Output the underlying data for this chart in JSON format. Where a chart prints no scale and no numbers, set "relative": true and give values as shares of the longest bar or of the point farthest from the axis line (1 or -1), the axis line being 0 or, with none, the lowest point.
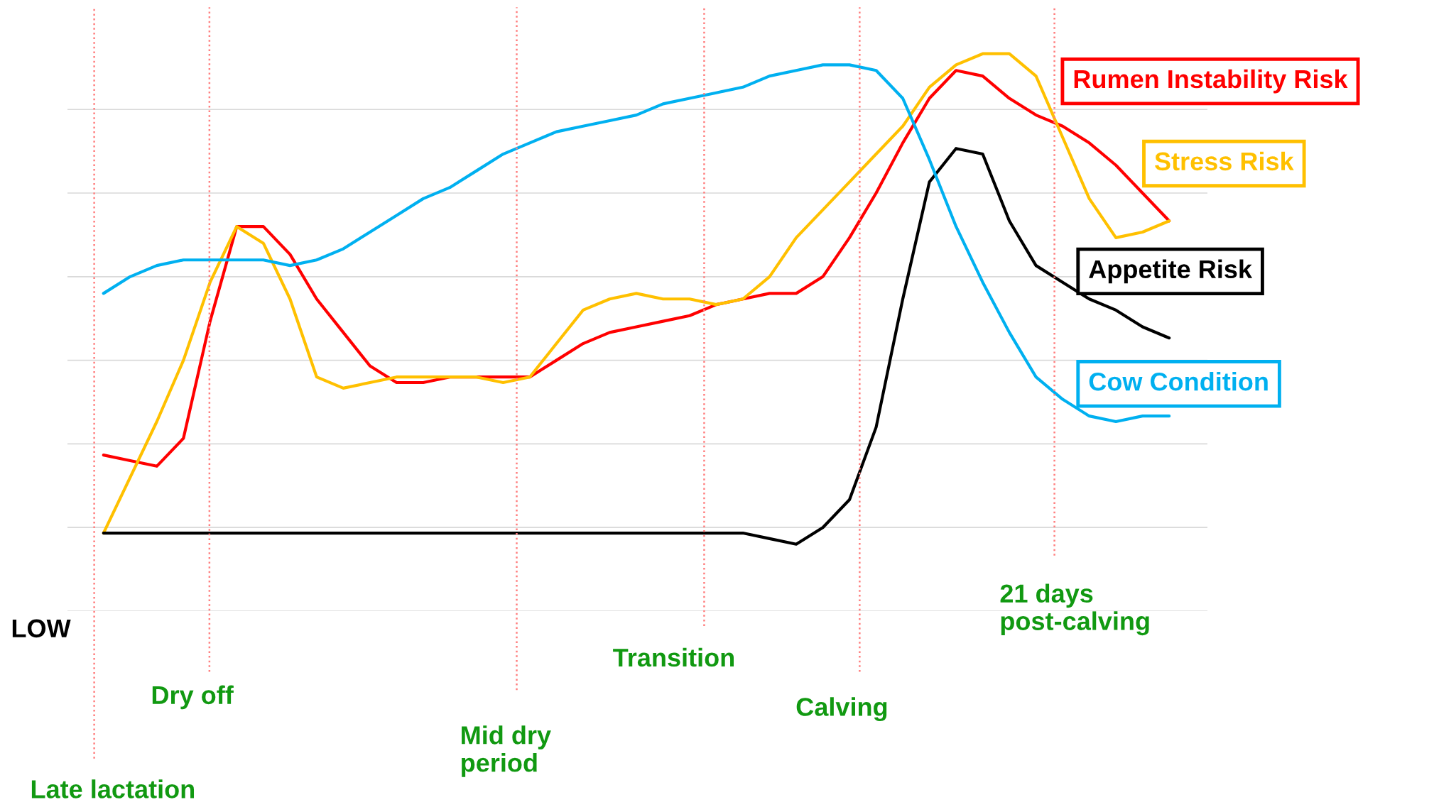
{
  "chart_data": {
    "type": "line",
    "relative": true,
    "grid": "y",
    "legend": false,
    "categories": [
      null,
      null,
      null,
      null,
      null,
      null,
      null,
      null,
      null,
      null,
      null,
      null,
      null,
      null,
      null,
      null,
      null,
      null,
      null,
      null,
      null,
      null,
      null,
      null,
      null,
      null,
      null,
      null,
      null,
      null,
      null,
      null,
      null,
      null,
      null,
      null,
      null,
      null,
      null,
      null,
      null
    ],
    "series": [
      {
        "name": "Rumen Instability Risk",
        "color": "#ff0000",
        "values": [
          0.28,
          0.27,
          0.26,
          0.31,
          0.52,
          0.69,
          0.69,
          0.64,
          0.56,
          0.5,
          0.44,
          0.41,
          0.41,
          0.42,
          0.42,
          0.42,
          0.42,
          0.45,
          0.48,
          0.5,
          0.51,
          0.52,
          0.53,
          0.55,
          0.56,
          0.57,
          0.57,
          0.6,
          0.67,
          0.75,
          0.84,
          0.92,
          0.97,
          0.96,
          0.92,
          0.89,
          0.87,
          0.84,
          0.8,
          0.75,
          0.7
        ]
      },
      {
        "name": "Stress Risk",
        "color": "#ffc000",
        "values": [
          0.14,
          0.24,
          0.34,
          0.45,
          0.59,
          0.69,
          0.66,
          0.56,
          0.42,
          0.4,
          0.41,
          0.42,
          0.42,
          0.42,
          0.42,
          0.41,
          0.42,
          0.48,
          0.54,
          0.56,
          0.57,
          0.56,
          0.56,
          0.55,
          0.56,
          0.6,
          0.67,
          0.72,
          0.77,
          0.82,
          0.87,
          0.94,
          0.98,
          1.0,
          1.0,
          0.96,
          0.85,
          0.74,
          0.67,
          0.68,
          0.7
        ]
      },
      {
        "name": "Appetite Risk",
        "color": "#000000",
        "values": [
          0.14,
          0.14,
          0.14,
          0.14,
          0.14,
          0.14,
          0.14,
          0.14,
          0.14,
          0.14,
          0.14,
          0.14,
          0.14,
          0.14,
          0.14,
          0.14,
          0.14,
          0.14,
          0.14,
          0.14,
          0.14,
          0.14,
          0.14,
          0.14,
          0.14,
          0.13,
          0.12,
          0.15,
          0.2,
          0.33,
          0.56,
          0.77,
          0.83,
          0.82,
          0.7,
          0.62,
          0.59,
          0.56,
          0.54,
          0.51,
          0.49
        ]
      },
      {
        "name": "Cow Condition",
        "color": "#00b0f0",
        "values": [
          0.57,
          0.6,
          0.62,
          0.63,
          0.63,
          0.63,
          0.63,
          0.62,
          0.63,
          0.65,
          0.68,
          0.71,
          0.74,
          0.76,
          0.79,
          0.82,
          0.84,
          0.86,
          0.87,
          0.88,
          0.89,
          0.91,
          0.92,
          0.93,
          0.94,
          0.96,
          0.97,
          0.98,
          0.98,
          0.97,
          0.92,
          0.81,
          0.69,
          0.59,
          0.5,
          0.42,
          0.38,
          0.35,
          0.34,
          0.35,
          0.35
        ]
      }
    ],
    "annotations": [
      "LOW",
      "Late lactation",
      "Dry off",
      "Mid dry\nperiod",
      "Transition",
      "Calving",
      "21 days\npost-calving"
    ]
  }
}
